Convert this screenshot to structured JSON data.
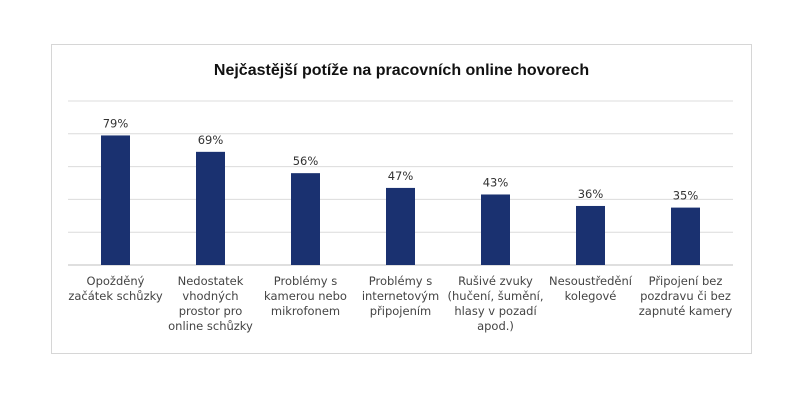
{
  "chart_data": {
    "type": "bar",
    "title": "Nejčastější potíže na pracovních online hovorech",
    "xlabel": "",
    "ylabel": "",
    "ylim": [
      0,
      100
    ],
    "grid": true,
    "legend": "none",
    "bar_color": "#1a3170",
    "categories": [
      [
        "Opožděný",
        "začátek schůzky"
      ],
      [
        "Nedostatek",
        "vhodných",
        "prostor pro",
        "online schůzky"
      ],
      [
        "Problémy s",
        "kamerou nebo",
        "mikrofonem"
      ],
      [
        "Problémy s",
        "internetovým",
        "připojením"
      ],
      [
        "Rušivé zvuky",
        "(hučení, šumění,",
        "hlasy v pozadí",
        "apod.)"
      ],
      [
        "Nesoustředění",
        "kolegové"
      ],
      [
        "Připojení bez",
        "pozdravu či bez",
        "zapnuté kamery"
      ]
    ],
    "values": [
      79,
      69,
      56,
      47,
      43,
      36,
      35
    ],
    "value_labels": [
      "79%",
      "69%",
      "56%",
      "47%",
      "43%",
      "36%",
      "35%"
    ]
  }
}
